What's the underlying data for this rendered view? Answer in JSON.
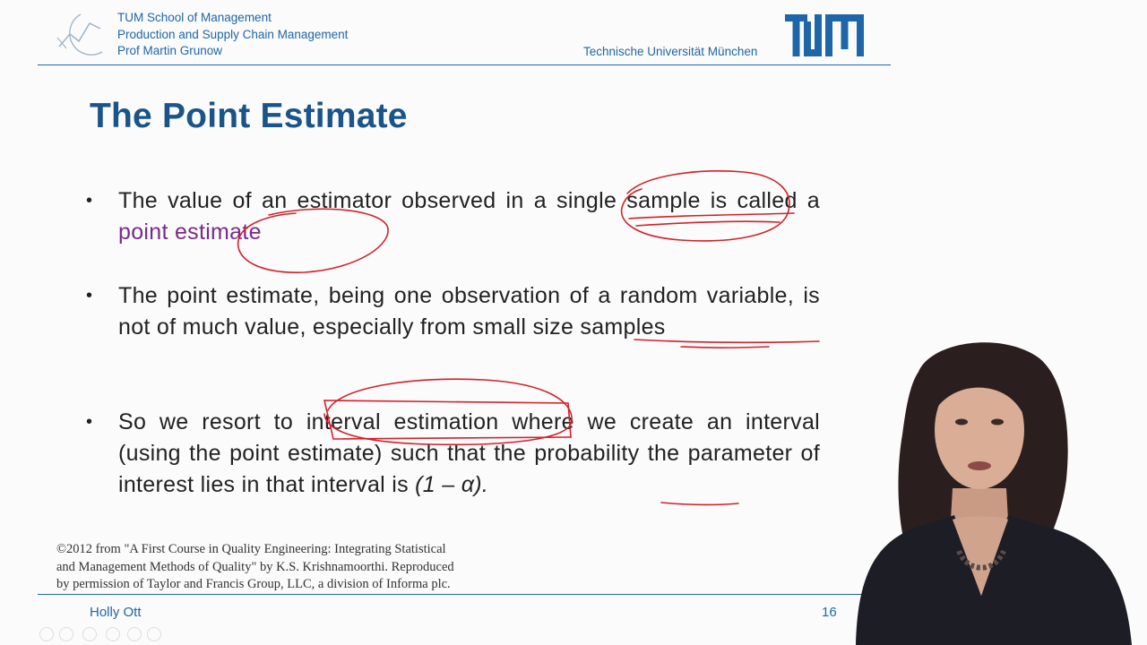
{
  "header": {
    "school": "TUM School of Management",
    "chair": "Production and Supply Chain Management",
    "professor": "Prof Martin Grunow",
    "university": "Technische Universität München",
    "logo_text": "TUM",
    "accent_color": "#1f66a8"
  },
  "slide": {
    "title": "The Point Estimate",
    "bullets": [
      {
        "parts": [
          "The value of an estimator observed in a ",
          "single sample",
          " is called a ",
          "point estimate"
        ]
      },
      {
        "parts": [
          "The point estimate, being one observation of a random variable, is not of much value, especially ",
          "from small size",
          " samples"
        ]
      },
      {
        "parts": [
          "So we resort to ",
          "interval estimation",
          " where we create an interval (using the point estimate) such that the probability the parameter of interest lies in that interval is ",
          "(1 – α)."
        ]
      }
    ],
    "bullet_symbol": "•",
    "credit": [
      "©2012 from \"A First Course in Quality Engineering: Integrating Statistical",
      "and Management Methods of Quality\" by K.S. Krishnamoorthi. Reproduced",
      "by permission of Taylor and Francis Group, LLC, a division of Informa plc."
    ]
  },
  "footer": {
    "presenter": "Holly Ott",
    "page_number": "16"
  },
  "annotation_color": "#d4202a"
}
